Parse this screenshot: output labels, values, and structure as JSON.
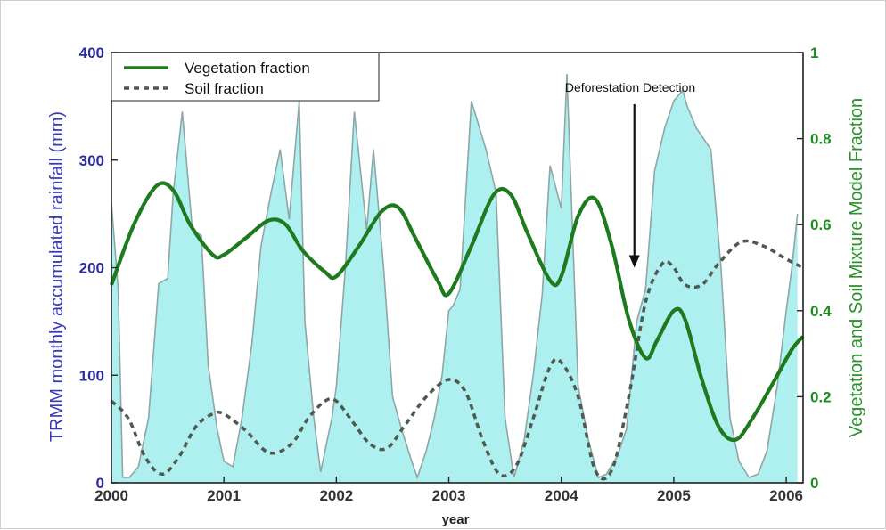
{
  "chart_data": {
    "type": "area",
    "xlabel": "year",
    "ylabel_left": "TRMM monthly accumulated rainfall (mm)",
    "ylabel_right": "Vegetation and Soil Mixture Model Fraction",
    "xlim": [
      2000,
      2006.15
    ],
    "ylim_left": [
      0,
      400
    ],
    "ylim_right": [
      0,
      1
    ],
    "x_ticks": [
      "2000",
      "2001",
      "2002",
      "2003",
      "2004",
      "2005",
      "2006"
    ],
    "y_ticks_left": [
      "0",
      "100",
      "200",
      "300",
      "400"
    ],
    "y_ticks_right": [
      "0",
      "0.2",
      "0.4",
      "0.6",
      "0.8",
      "1"
    ],
    "grid": false,
    "legend_position": "top-left",
    "colors": {
      "rain_fill": "#aef0f0",
      "rain_line": "#8fa6a6",
      "vegetation": "#1d7a1d",
      "soil": "#4d5a4d",
      "left_axis": "#3a3ab8",
      "right_axis": "#2a922a"
    },
    "series": [
      {
        "name": "TRMM monthly accumulated rainfall",
        "axis": "left",
        "style": "filled-area",
        "x": [
          2000.0,
          2000.06,
          2000.1,
          2000.16,
          2000.24,
          2000.33,
          2000.42,
          2000.5,
          2000.55,
          2000.63,
          2000.72,
          2000.8,
          2000.86,
          2000.94,
          2001.0,
          2001.08,
          2001.16,
          2001.25,
          2001.33,
          2001.42,
          2001.5,
          2001.58,
          2001.67,
          2001.72,
          2001.8,
          2001.86,
          2001.9,
          2001.96,
          2002.0,
          2002.08,
          2002.16,
          2002.27,
          2002.33,
          2002.42,
          2002.5,
          2002.58,
          2002.67,
          2002.72,
          2002.8,
          2002.87,
          2002.94,
          2003.0,
          2003.04,
          2003.1,
          2003.2,
          2003.33,
          2003.42,
          2003.5,
          2003.58,
          2003.67,
          2003.75,
          2003.83,
          2003.9,
          2003.95,
          2004.0,
          2004.05,
          2004.15,
          2004.24,
          2004.33,
          2004.4,
          2004.5,
          2004.58,
          2004.67,
          2004.75,
          2004.83,
          2004.92,
          2005.0,
          2005.08,
          2005.12,
          2005.2,
          2005.33,
          2005.42,
          2005.5,
          2005.58,
          2005.67,
          2005.75,
          2005.83,
          2005.92,
          2006.0,
          2006.05,
          2006.1
        ],
        "y": [
          260,
          180,
          5,
          5,
          15,
          60,
          185,
          190,
          270,
          345,
          235,
          230,
          110,
          50,
          20,
          15,
          60,
          130,
          220,
          270,
          310,
          245,
          355,
          150,
          60,
          10,
          30,
          60,
          90,
          200,
          345,
          235,
          310,
          200,
          80,
          50,
          20,
          5,
          30,
          60,
          100,
          160,
          165,
          180,
          355,
          310,
          270,
          60,
          5,
          40,
          100,
          175,
          295,
          275,
          255,
          380,
          90,
          40,
          5,
          8,
          25,
          50,
          150,
          180,
          290,
          330,
          355,
          365,
          350,
          330,
          310,
          200,
          60,
          20,
          5,
          8,
          30,
          90,
          160,
          200,
          250
        ],
        "x_note": "monthly samples"
      },
      {
        "name": "Vegetation fraction",
        "axis": "right",
        "style": "solid",
        "x": [
          2000.0,
          2000.2,
          2000.4,
          2000.55,
          2000.7,
          2000.9,
          2001.0,
          2001.2,
          2001.4,
          2001.55,
          2001.7,
          2001.9,
          2002.0,
          2002.2,
          2002.4,
          2002.55,
          2002.7,
          2002.9,
          2003.0,
          2003.2,
          2003.4,
          2003.55,
          2003.7,
          2003.9,
          2004.0,
          2004.15,
          2004.3,
          2004.45,
          2004.6,
          2004.75,
          2004.85,
          2005.0,
          2005.1,
          2005.25,
          2005.4,
          2005.55,
          2005.7,
          2005.9,
          2006.05,
          2006.15
        ],
        "y": [
          0.46,
          0.6,
          0.69,
          0.68,
          0.6,
          0.53,
          0.53,
          0.57,
          0.61,
          0.6,
          0.54,
          0.49,
          0.48,
          0.55,
          0.63,
          0.64,
          0.57,
          0.47,
          0.44,
          0.55,
          0.67,
          0.67,
          0.58,
          0.47,
          0.48,
          0.62,
          0.66,
          0.55,
          0.38,
          0.29,
          0.33,
          0.4,
          0.38,
          0.24,
          0.13,
          0.1,
          0.15,
          0.24,
          0.31,
          0.34
        ]
      },
      {
        "name": "Soil fraction",
        "axis": "right",
        "style": "dashed",
        "x": [
          2000.0,
          2000.15,
          2000.3,
          2000.45,
          2000.6,
          2000.75,
          2000.9,
          2001.0,
          2001.2,
          2001.4,
          2001.6,
          2001.75,
          2001.9,
          2002.0,
          2002.15,
          2002.3,
          2002.45,
          2002.6,
          2002.8,
          2003.0,
          2003.15,
          2003.3,
          2003.45,
          2003.6,
          2003.75,
          2003.9,
          2004.0,
          2004.15,
          2004.3,
          2004.45,
          2004.6,
          2004.75,
          2004.9,
          2005.0,
          2005.1,
          2005.25,
          2005.4,
          2005.6,
          2005.8,
          2006.0,
          2006.15
        ],
        "y": [
          0.19,
          0.15,
          0.06,
          0.02,
          0.06,
          0.13,
          0.16,
          0.16,
          0.12,
          0.07,
          0.09,
          0.15,
          0.19,
          0.19,
          0.14,
          0.09,
          0.08,
          0.13,
          0.2,
          0.24,
          0.21,
          0.1,
          0.02,
          0.04,
          0.15,
          0.27,
          0.28,
          0.2,
          0.03,
          0.03,
          0.2,
          0.42,
          0.51,
          0.5,
          0.46,
          0.46,
          0.51,
          0.56,
          0.55,
          0.52,
          0.5
        ]
      }
    ],
    "annotations": [
      {
        "text": "Deforestation Detection",
        "x": 2004.65,
        "arrow_from_y_right": 0.88,
        "arrow_to_y_right": 0.5
      }
    ],
    "legend": [
      {
        "label": "Vegetation fraction",
        "style": "solid"
      },
      {
        "label": "Soil fraction",
        "style": "dashed"
      }
    ]
  }
}
